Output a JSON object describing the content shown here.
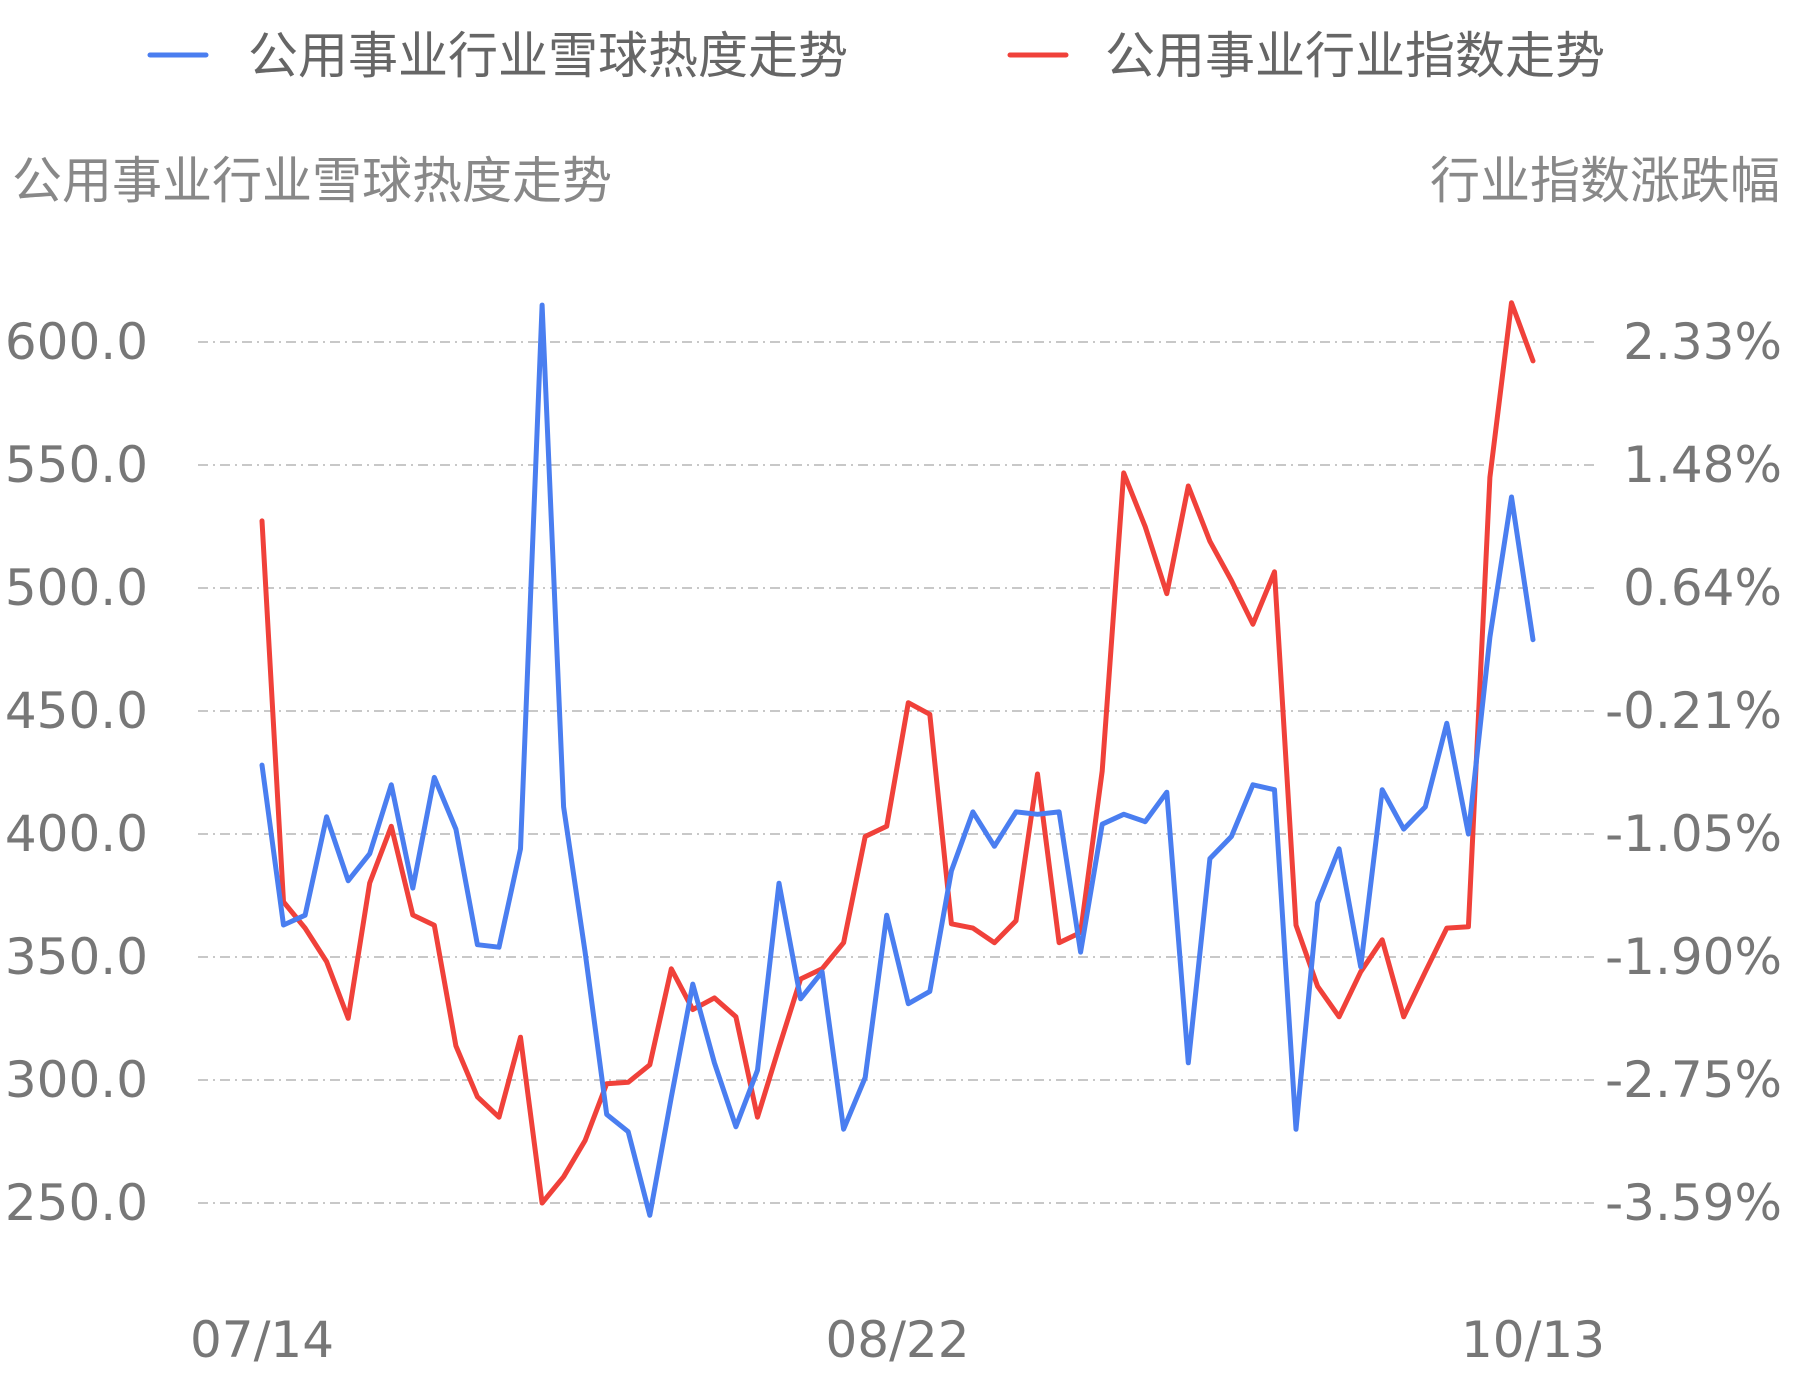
{
  "chart_data": {
    "type": "line",
    "legend": {
      "position": "top",
      "entries": [
        "公用事业行业雪球热度走势",
        "公用事业行业指数走势"
      ]
    },
    "left_axis_title": "公用事业行业雪球热度走势",
    "right_axis_title": "行业指数涨跌幅",
    "left_ticks": [
      "600.0",
      "550.0",
      "500.0",
      "450.0",
      "400.0",
      "350.0",
      "300.0",
      "250.0"
    ],
    "right_ticks": [
      "2.33%",
      "1.48%",
      "0.64%",
      "-0.21%",
      "-1.05%",
      "-1.90%",
      "-2.75%",
      "-3.59%"
    ],
    "x_ticks": [
      "07/14",
      "08/22",
      "10/13"
    ],
    "grid": true,
    "colors": {
      "heat": "#4a7ef0",
      "index": "#f0413a"
    },
    "left_range": [
      250,
      600
    ],
    "right_range": [
      -3.59,
      2.33
    ],
    "series": [
      {
        "name": "公用事业行业雪球热度走势",
        "axis": "left",
        "values": [
          428,
          363,
          367,
          407,
          381,
          392,
          420,
          378,
          423,
          402,
          355,
          354,
          394,
          615,
          411,
          352,
          286,
          279,
          245,
          293,
          339,
          307,
          281,
          304,
          380,
          333,
          344,
          280,
          301,
          367,
          331,
          336,
          385,
          409,
          395,
          409,
          408,
          409,
          352,
          404,
          408,
          405,
          417,
          307,
          390,
          399,
          420,
          418,
          280,
          372,
          394,
          346,
          418,
          402,
          411,
          445,
          400,
          480,
          537,
          479
        ]
      },
      {
        "name": "公用事业行业指数走势",
        "axis": "right",
        "values": [
          1.1,
          -1.52,
          -1.7,
          -1.93,
          -2.32,
          -1.39,
          -1.0,
          -1.61,
          -1.68,
          -2.51,
          -2.86,
          -3.0,
          -2.45,
          -3.59,
          -3.41,
          -3.16,
          -2.77,
          -2.76,
          -2.64,
          -1.98,
          -2.26,
          -2.18,
          -2.31,
          -3.0,
          -2.52,
          -2.05,
          -1.98,
          -1.8,
          -1.07,
          -1.0,
          -0.15,
          -0.23,
          -1.67,
          -1.7,
          -1.8,
          -1.65,
          -0.64,
          -1.8,
          -1.73,
          -0.62,
          1.43,
          1.06,
          0.6,
          1.34,
          0.96,
          0.69,
          0.39,
          0.75,
          -1.68,
          -2.1,
          -2.31,
          -2.0,
          -1.78,
          -2.31,
          -2.0,
          -1.7,
          -1.69,
          1.4,
          2.6,
          2.2
        ]
      }
    ]
  }
}
